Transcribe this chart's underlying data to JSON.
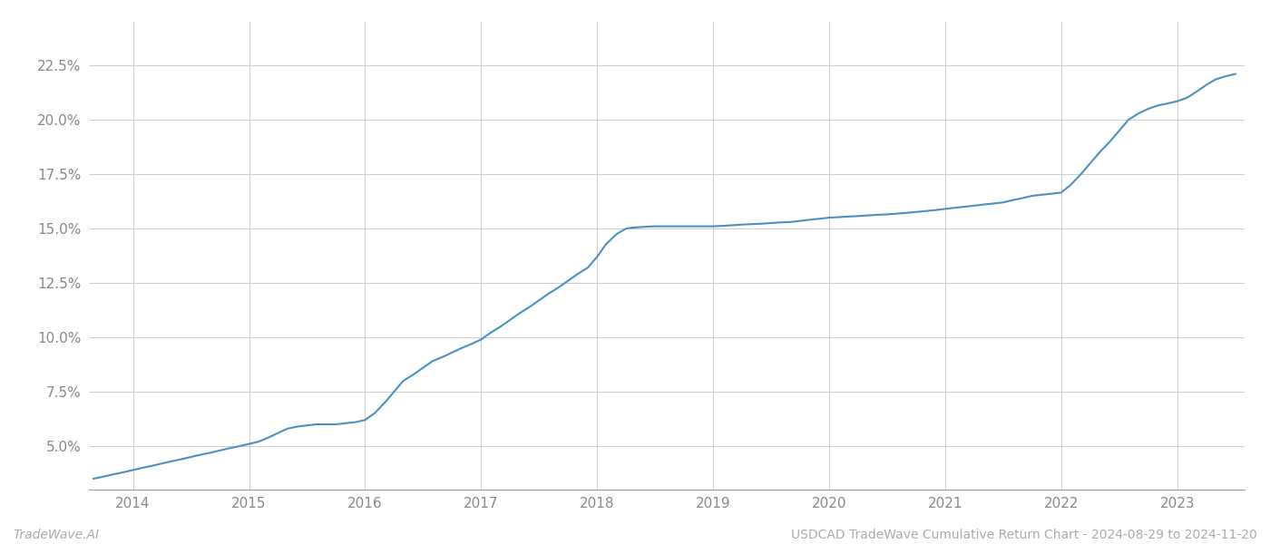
{
  "footer_left": "TradeWave.AI",
  "footer_right": "USDCAD TradeWave Cumulative Return Chart - 2024-08-29 to 2024-11-20",
  "line_color": "#4a90c4",
  "background_color": "#ffffff",
  "grid_color": "#cccccc",
  "x_years": [
    2014,
    2015,
    2016,
    2017,
    2018,
    2019,
    2020,
    2021,
    2022,
    2023
  ],
  "x_values": [
    2013.66,
    2013.75,
    2013.83,
    2013.92,
    2014.0,
    2014.08,
    2014.17,
    2014.25,
    2014.33,
    2014.42,
    2014.5,
    2014.58,
    2014.67,
    2014.75,
    2014.83,
    2014.92,
    2015.0,
    2015.08,
    2015.17,
    2015.25,
    2015.33,
    2015.42,
    2015.5,
    2015.58,
    2015.67,
    2015.75,
    2015.83,
    2015.92,
    2016.0,
    2016.08,
    2016.17,
    2016.25,
    2016.33,
    2016.42,
    2016.5,
    2016.58,
    2016.67,
    2016.75,
    2016.83,
    2016.92,
    2017.0,
    2017.08,
    2017.17,
    2017.25,
    2017.33,
    2017.42,
    2017.5,
    2017.58,
    2017.67,
    2017.75,
    2017.83,
    2017.92,
    2018.0,
    2018.08,
    2018.17,
    2018.25,
    2018.33,
    2018.42,
    2018.5,
    2018.58,
    2018.67,
    2018.75,
    2018.83,
    2018.92,
    2019.0,
    2019.08,
    2019.17,
    2019.25,
    2019.33,
    2019.42,
    2019.5,
    2019.58,
    2019.67,
    2019.75,
    2019.83,
    2019.92,
    2020.0,
    2020.08,
    2020.17,
    2020.25,
    2020.33,
    2020.42,
    2020.5,
    2020.58,
    2020.67,
    2020.75,
    2020.83,
    2020.92,
    2021.0,
    2021.08,
    2021.17,
    2021.25,
    2021.33,
    2021.42,
    2021.5,
    2021.58,
    2021.67,
    2021.75,
    2021.83,
    2021.92,
    2022.0,
    2022.08,
    2022.17,
    2022.25,
    2022.33,
    2022.42,
    2022.5,
    2022.58,
    2022.67,
    2022.75,
    2022.83,
    2022.92,
    2023.0,
    2023.08,
    2023.17,
    2023.25,
    2023.33,
    2023.42,
    2023.5
  ],
  "y_values": [
    3.5,
    3.6,
    3.7,
    3.8,
    3.9,
    4.0,
    4.1,
    4.2,
    4.3,
    4.4,
    4.5,
    4.6,
    4.7,
    4.8,
    4.9,
    5.0,
    5.1,
    5.2,
    5.4,
    5.6,
    5.8,
    5.9,
    5.95,
    6.0,
    6.0,
    6.0,
    6.05,
    6.1,
    6.2,
    6.5,
    7.0,
    7.5,
    8.0,
    8.3,
    8.6,
    8.9,
    9.1,
    9.3,
    9.5,
    9.7,
    9.9,
    10.2,
    10.5,
    10.8,
    11.1,
    11.4,
    11.7,
    12.0,
    12.3,
    12.6,
    12.9,
    13.2,
    13.7,
    14.3,
    14.75,
    15.0,
    15.05,
    15.08,
    15.1,
    15.1,
    15.1,
    15.1,
    15.1,
    15.1,
    15.1,
    15.12,
    15.15,
    15.18,
    15.2,
    15.22,
    15.25,
    15.28,
    15.3,
    15.35,
    15.4,
    15.45,
    15.5,
    15.52,
    15.55,
    15.57,
    15.6,
    15.63,
    15.65,
    15.68,
    15.72,
    15.76,
    15.8,
    15.85,
    15.9,
    15.95,
    16.0,
    16.05,
    16.1,
    16.15,
    16.2,
    16.3,
    16.4,
    16.5,
    16.55,
    16.6,
    16.65,
    17.0,
    17.5,
    18.0,
    18.5,
    19.0,
    19.5,
    20.0,
    20.3,
    20.5,
    20.65,
    20.75,
    20.85,
    21.0,
    21.3,
    21.6,
    21.85,
    22.0,
    22.1
  ],
  "ylim": [
    3.0,
    24.5
  ],
  "xlim": [
    2013.62,
    2023.58
  ],
  "yticks": [
    5.0,
    7.5,
    10.0,
    12.5,
    15.0,
    17.5,
    20.0,
    22.5
  ],
  "ytick_labels": [
    "5.0%",
    "7.5%",
    "10.0%",
    "12.5%",
    "15.0%",
    "17.5%",
    "20.0%",
    "22.5%"
  ],
  "linewidth": 1.5,
  "tick_fontsize": 11,
  "tick_color": "#888888",
  "footer_fontsize": 10,
  "footer_color": "#aaaaaa"
}
